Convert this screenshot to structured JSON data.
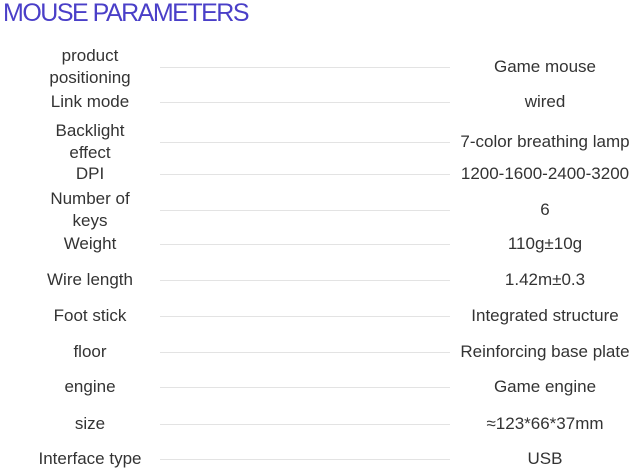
{
  "title": "MOUSE PARAMETERS",
  "specs": [
    {
      "label": "product positioning",
      "value": "Game mouse"
    },
    {
      "label": "Link mode",
      "value": "wired"
    },
    {
      "label": "Backlight effect",
      "value": "7-color breathing lamp"
    },
    {
      "label": "DPI",
      "value": "1200-1600-2400-3200"
    },
    {
      "label": "Number of keys",
      "value": "6"
    },
    {
      "label": "Weight",
      "value": "110g±10g"
    },
    {
      "label": "Wire length",
      "value": "1.42m±0.3"
    },
    {
      "label": "Foot stick",
      "value": "Integrated structure"
    },
    {
      "label": "floor",
      "value": "Reinforcing base plate"
    },
    {
      "label": "engine",
      "value": "Game engine"
    },
    {
      "label": "size",
      "value": "≈123*66*37mm"
    },
    {
      "label": "Interface type",
      "value": "USB"
    }
  ]
}
